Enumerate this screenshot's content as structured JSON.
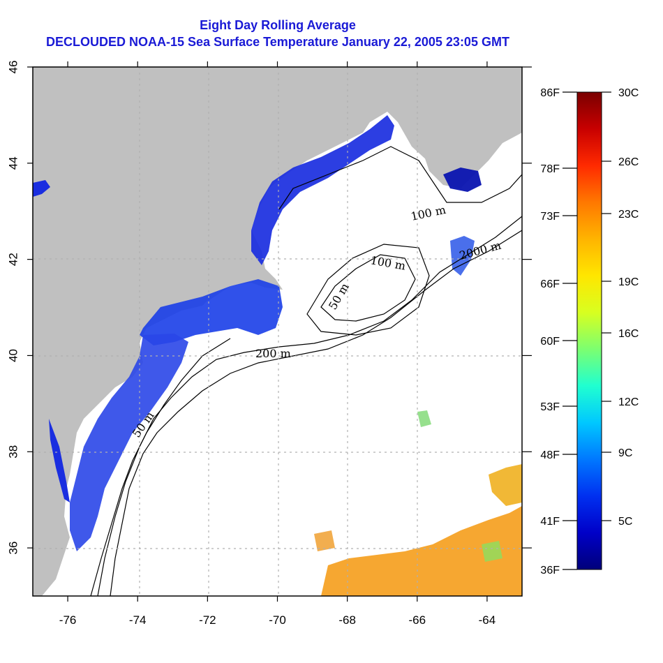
{
  "title": {
    "line1": "Eight Day Rolling Average",
    "line2": "DECLOUDED NOAA-15 Sea Surface Temperature January 22, 2005 23:05 GMT"
  },
  "axes": {
    "x_ticks": [
      "-76",
      "-74",
      "-72",
      "-70",
      "-68",
      "-66",
      "-64"
    ],
    "y_ticks": [
      "36",
      "38",
      "40",
      "42",
      "44",
      "46"
    ],
    "lon_range": [
      -77,
      -63
    ],
    "lat_range": [
      35,
      46
    ]
  },
  "contour_labels": [
    {
      "text": "100 m",
      "region": "gulf-of-maine-north"
    },
    {
      "text": "100 m",
      "region": "georges-bank"
    },
    {
      "text": "50 m",
      "region": "georges-bank"
    },
    {
      "text": "2000 m",
      "region": "scotian-slope"
    },
    {
      "text": "200 m",
      "region": "southern-new-england-shelf"
    },
    {
      "text": "50 m",
      "region": "mid-atlantic-shelf"
    }
  ],
  "colorbar": {
    "fahrenheit": [
      "86F",
      "78F",
      "73F",
      "66F",
      "60F",
      "53F",
      "48F",
      "41F",
      "36F"
    ],
    "celsius": [
      "30C",
      "26C",
      "23C",
      "19C",
      "16C",
      "12C",
      "9C",
      "5C"
    ],
    "colors": [
      "#7a0000",
      "#c80000",
      "#ff2a00",
      "#ff7800",
      "#ffb400",
      "#ffe600",
      "#d8ff20",
      "#7cff70",
      "#20ffd0",
      "#00c8ff",
      "#0078ff",
      "#0030f0",
      "#0000c8",
      "#00007a"
    ]
  },
  "colors": {
    "land": "#c0c0c0",
    "cold_water": "#1a2ee0",
    "warm_water": "#f5a020",
    "title": "#1a1ad6"
  }
}
